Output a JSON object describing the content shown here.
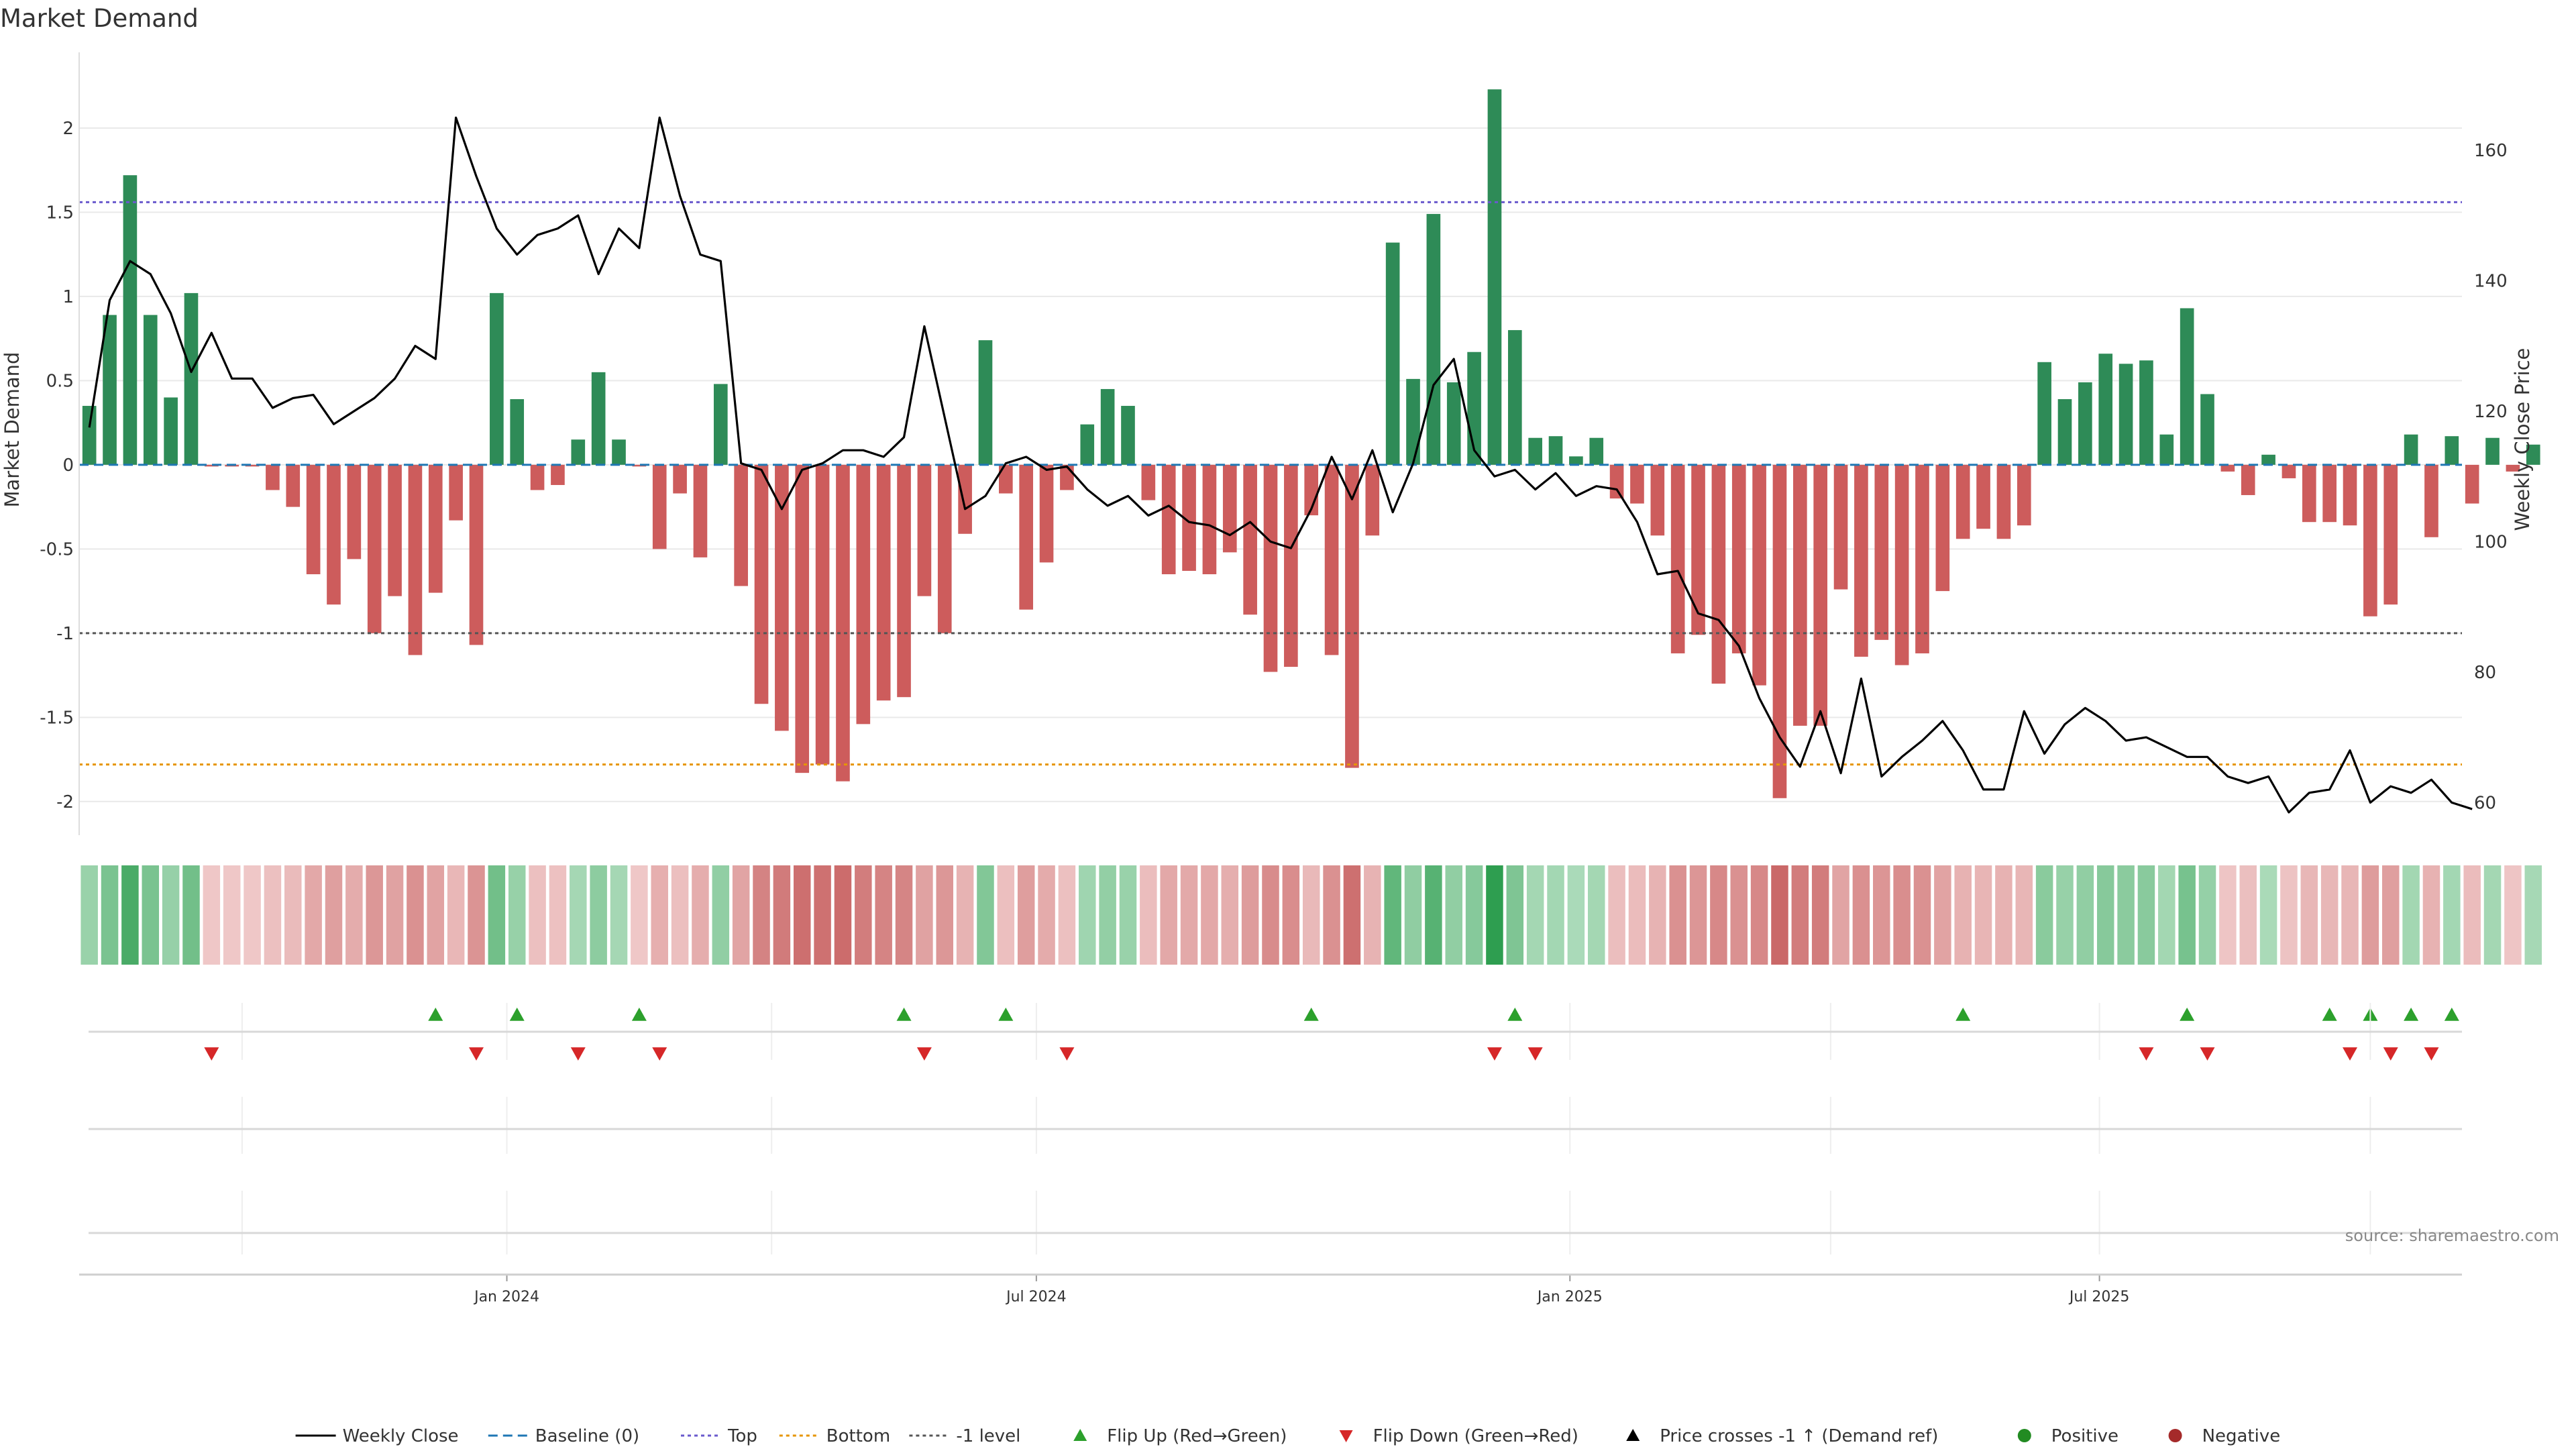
{
  "chart_data": {
    "type": "bar",
    "title": "Market Demand",
    "ylabel": "Market Demand",
    "y2label": "Weekly Close Price",
    "ylim": [
      -2.2,
      2.45
    ],
    "y2lim": [
      55,
      175
    ],
    "yticks": [
      2,
      1.5,
      1,
      0.5,
      0,
      -0.5,
      -1,
      -1.5,
      -2
    ],
    "yticks_right": [
      160,
      140,
      120,
      100,
      80,
      60
    ],
    "x_labels": [
      {
        "label": "Jan 2024",
        "week": 21
      },
      {
        "label": "Jul 2024",
        "week": 47
      },
      {
        "label": "Jan 2025",
        "week": 73.2
      },
      {
        "label": "Jul 2025",
        "week": 99.2
      }
    ],
    "x_range": [
      0,
      117
    ],
    "reference_lines": {
      "top": 1.56,
      "bottom": -1.78,
      "minus_one": -1.0,
      "baseline": 0
    },
    "demand": [
      0.35,
      0.89,
      1.72,
      0.89,
      0.4,
      1.02,
      -0.01,
      -0.01,
      -0.01,
      -0.15,
      -0.25,
      -0.65,
      -0.83,
      -0.56,
      -1.0,
      -0.78,
      -1.13,
      -0.76,
      -0.33,
      -1.07,
      1.02,
      0.39,
      -0.15,
      -0.12,
      0.15,
      0.55,
      0.15,
      -0.01,
      -0.5,
      -0.17,
      -0.55,
      0.48,
      -0.72,
      -1.42,
      -1.58,
      -1.83,
      -1.78,
      -1.88,
      -1.54,
      -1.4,
      -1.38,
      -0.78,
      -1.0,
      -0.41,
      0.74,
      -0.17,
      -0.86,
      -0.58,
      -0.15,
      0.24,
      0.45,
      0.35,
      -0.21,
      -0.65,
      -0.63,
      -0.65,
      -0.52,
      -0.89,
      -1.23,
      -1.2,
      -0.3,
      -1.13,
      -1.8,
      -0.42,
      1.32,
      0.51,
      1.49,
      0.49,
      0.67,
      2.23,
      0.8,
      0.16,
      0.17,
      0.05,
      0.16,
      -0.2,
      -0.23,
      -0.42,
      -1.12,
      -1.01,
      -1.3,
      -1.12,
      -1.31,
      -1.98,
      -1.55,
      -1.55,
      -0.74,
      -1.14,
      -1.04,
      -1.19,
      -1.12,
      -0.75,
      -0.44,
      -0.38,
      -0.44,
      -0.36,
      0.61,
      0.39,
      0.49,
      0.66,
      0.6,
      0.62,
      0.18,
      0.93,
      0.42,
      -0.04,
      -0.18,
      0.06,
      -0.08,
      -0.34,
      -0.34,
      -0.36,
      -0.9,
      -0.83,
      0.18,
      -0.43,
      0.17,
      -0.23,
      0.16,
      -0.04,
      0.12
    ],
    "price": [
      117.5,
      137,
      143,
      141,
      135,
      126,
      132,
      125,
      125,
      120.5,
      122,
      122.5,
      118,
      120,
      122,
      125,
      130,
      128,
      165,
      156,
      148,
      144,
      147,
      148,
      150,
      141,
      148,
      145,
      165,
      153,
      144,
      143,
      112,
      111,
      105,
      111,
      112,
      114,
      114,
      113,
      116,
      133,
      119,
      105,
      107,
      112,
      113,
      111,
      111.5,
      108,
      105.5,
      107,
      104,
      105.5,
      103,
      102.5,
      101,
      103,
      100,
      99,
      105,
      113,
      106.5,
      114,
      104.5,
      112,
      124,
      128,
      114,
      110,
      111,
      108,
      110.5,
      107,
      108.5,
      108,
      103,
      95,
      95.5,
      89,
      88,
      84,
      76,
      70,
      65.5,
      74,
      64.5,
      79,
      64,
      67,
      69.5,
      72.5,
      68,
      62,
      62,
      74,
      67.5,
      72,
      74.5,
      72.5,
      69.5,
      70,
      68.5,
      67,
      67,
      64,
      63,
      64,
      58.5,
      61.5,
      62,
      68,
      60,
      62.5,
      61.5,
      63.5,
      60,
      59
    ],
    "heat_strip": "weekly demand intensity (green = positive, red = negative)",
    "flip_up_weeks": [
      17,
      21,
      27,
      40,
      45,
      60,
      70,
      92,
      103,
      110,
      112,
      114,
      116
    ],
    "flip_down_weeks": [
      6,
      19,
      24,
      28,
      41,
      48,
      69,
      71,
      101,
      104,
      111,
      113,
      115
    ],
    "source": "source: sharemaestro.com",
    "legend": [
      {
        "key": "weekly_close",
        "label": "Weekly Close"
      },
      {
        "key": "baseline",
        "label": "Baseline (0)"
      },
      {
        "key": "top",
        "label": "Top"
      },
      {
        "key": "bottom",
        "label": "Bottom"
      },
      {
        "key": "minus_one",
        "label": "-1 level"
      },
      {
        "key": "flip_up",
        "label": "Flip Up (Red→Green)"
      },
      {
        "key": "flip_down",
        "label": "Flip Down (Green→Red)"
      },
      {
        "key": "price_cross",
        "label": "Price crosses -1 ↑ (Demand ref)"
      },
      {
        "key": "positive",
        "label": "Positive"
      },
      {
        "key": "negative",
        "label": "Negative"
      }
    ],
    "colors": {
      "positive_bar": "#2e8b57",
      "negative_bar": "#cd5c5c",
      "price_line": "#000000",
      "baseline": "#1f77b4",
      "top_line": "#6a5acd",
      "bottom_line": "#e69500",
      "minus_one_line": "#555555",
      "flip_up": "#2ca02c",
      "flip_down": "#d62728",
      "positive_dot": "#228b22",
      "negative_dot": "#a52a2a",
      "grid": "#e9e9e9"
    }
  }
}
